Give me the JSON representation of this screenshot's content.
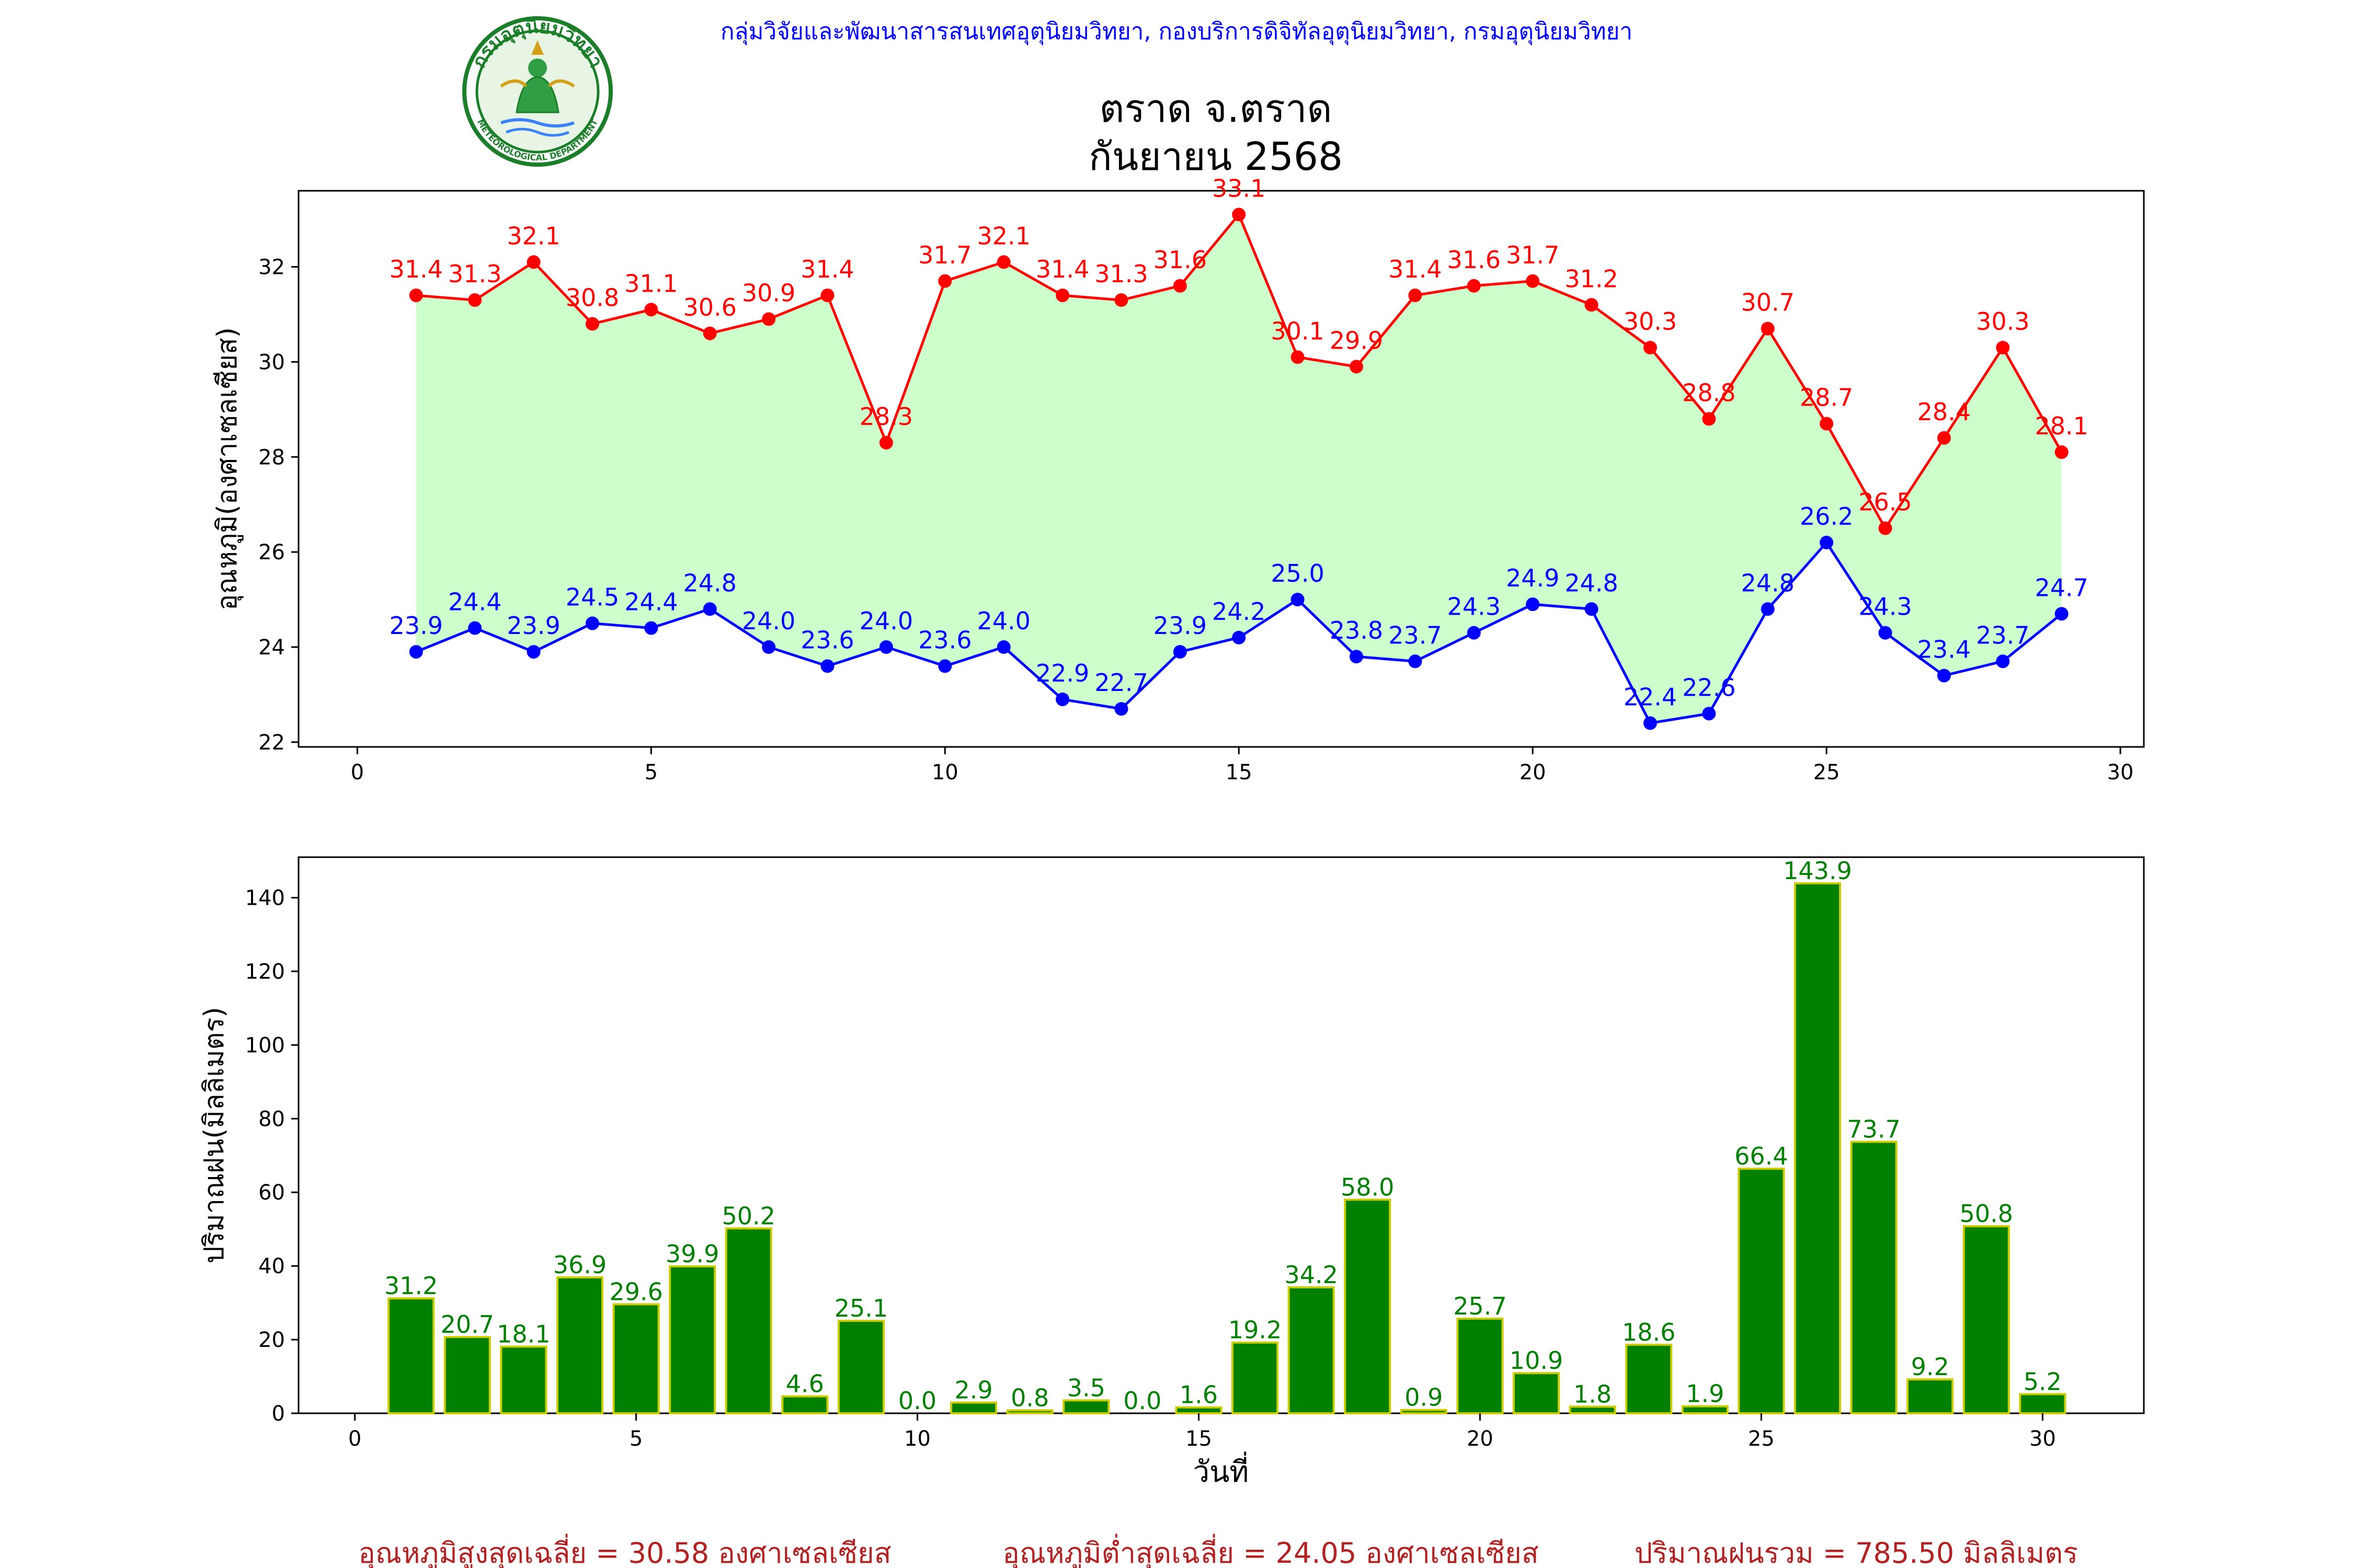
{
  "header": {
    "org_text": "กลุ่มวิจัยและพัฒนาสารสนเทศอุตุนิยมวิทยา, กองบริการดิจิทัลอุตุนิยมวิทยา, กรมอุตุนิยมวิทยา",
    "title_line1": "ตราด จ.ตราด",
    "title_line2": "กันยายน 2568",
    "logo": {
      "name": "meteorological-department-seal",
      "top_text": "กรมอุตุนิยมวิทยา",
      "bottom_text": "METEOROLOGICAL DEPARTMENT"
    }
  },
  "colors": {
    "max_temp": "#ff0000",
    "min_temp": "#0000ff",
    "fill": "#ccffcc",
    "bar_fill": "#008000",
    "bar_edge": "#cccc00",
    "bar_label": "#008000",
    "org_text": "#0000ff",
    "summary_text": "#b22222"
  },
  "chart_data": [
    {
      "type": "line",
      "ylabel": "อุณหภูมิ(องศาเซลเซียส)",
      "xlim": [
        -1,
        30.4
      ],
      "ylim": [
        21.9,
        33.6
      ],
      "xticks": [
        0,
        5,
        10,
        15,
        20,
        25,
        30
      ],
      "yticks": [
        22,
        24,
        26,
        28,
        30,
        32
      ],
      "grid": false,
      "x": [
        1,
        2,
        3,
        4,
        5,
        6,
        7,
        8,
        9,
        10,
        11,
        12,
        13,
        14,
        15,
        16,
        17,
        18,
        19,
        20,
        21,
        22,
        23,
        24,
        25,
        26,
        27,
        28,
        29
      ],
      "series": [
        {
          "key": "max",
          "values": [
            31.4,
            31.3,
            32.1,
            30.8,
            31.1,
            30.6,
            30.9,
            31.4,
            28.3,
            31.7,
            32.1,
            31.4,
            31.3,
            31.6,
            33.1,
            30.1,
            29.9,
            31.4,
            31.6,
            31.7,
            31.2,
            30.3,
            28.8,
            30.7,
            28.7,
            26.5,
            28.4,
            30.3,
            28.1
          ],
          "labels": [
            "31.4",
            "31.3",
            "32.1",
            "30.8",
            "31.1",
            "30.6",
            "30.9",
            "31.4",
            "28.3",
            "31.7",
            "32.1",
            "31.4",
            "31.3",
            "31.6",
            "33.1",
            "30.1",
            "29.9",
            "31.4",
            "31.6",
            "31.7",
            "31.2",
            "30.3",
            "28.8",
            "30.7",
            "28.7",
            "26.5",
            "28.4",
            "30.3",
            "28.1"
          ]
        },
        {
          "key": "min",
          "values": [
            23.9,
            24.4,
            23.9,
            24.5,
            24.4,
            24.8,
            24.0,
            23.6,
            24.0,
            23.6,
            24.0,
            22.9,
            22.7,
            23.9,
            24.2,
            25.0,
            23.8,
            23.7,
            24.3,
            24.9,
            24.8,
            22.4,
            22.6,
            24.8,
            26.2,
            24.3,
            23.4,
            23.7,
            24.7
          ],
          "labels": [
            "23.9",
            "24.4",
            "23.9",
            "24.5",
            "24.4",
            "24.8",
            "24.0",
            "23.6",
            "24.0",
            "23.6",
            "24.0",
            "22.9",
            "22.7",
            "23.9",
            "24.2",
            "25.0",
            "23.8",
            "23.7",
            "24.3",
            "24.9",
            "24.8",
            "22.4",
            "22.6",
            "24.8",
            "26.2",
            "24.3",
            "23.4",
            "23.7",
            "24.7"
          ]
        }
      ]
    },
    {
      "type": "bar",
      "xlabel": "วันที่",
      "ylabel": "ปริมาณฝน(มิลลิเมตร)",
      "xlim": [
        -1,
        31.8
      ],
      "ylim": [
        0,
        151
      ],
      "xticks": [
        0,
        5,
        10,
        15,
        20,
        25,
        30
      ],
      "yticks": [
        0,
        20,
        40,
        60,
        80,
        100,
        120,
        140
      ],
      "grid": false,
      "x": [
        1,
        2,
        3,
        4,
        5,
        6,
        7,
        8,
        9,
        10,
        11,
        12,
        13,
        14,
        15,
        16,
        17,
        18,
        19,
        20,
        21,
        22,
        23,
        24,
        25,
        26,
        27,
        28,
        29,
        30
      ],
      "values": [
        31.2,
        20.7,
        18.1,
        36.9,
        29.6,
        39.9,
        50.2,
        4.6,
        25.1,
        0.0,
        2.9,
        0.8,
        3.5,
        0.0,
        1.6,
        19.2,
        34.2,
        58.0,
        0.9,
        25.7,
        10.9,
        1.8,
        18.6,
        1.9,
        66.4,
        143.9,
        73.7,
        9.2,
        50.8,
        5.2
      ],
      "labels": [
        "31.2",
        "20.7",
        "18.1",
        "36.9",
        "29.6",
        "39.9",
        "50.2",
        "4.6",
        "25.1",
        "0.0",
        "2.9",
        "0.8",
        "3.5",
        "0.0",
        "1.6",
        "19.2",
        "34.2",
        "58.0",
        "0.9",
        "25.7",
        "10.9",
        "1.8",
        "18.6",
        "1.9",
        "66.4",
        "143.9",
        "73.7",
        "9.2",
        "50.8",
        "5.2"
      ]
    }
  ],
  "summary": {
    "max_avg": "อุณหภูมิสูงสุดเฉลี่ย = 30.58 องศาเซลเซียส",
    "min_avg": "อุณหภูมิต่ำสุดเฉลี่ย = 24.05 องศาเซลเซียส",
    "rain_total": "ปริมาณฝนรวม = 785.50 มิลลิเมตร"
  }
}
